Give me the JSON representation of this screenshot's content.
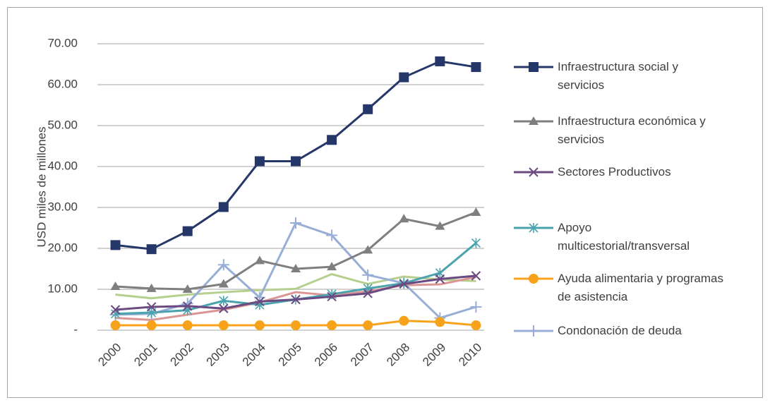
{
  "chart_data": {
    "type": "line",
    "y_label": "USD miles de millones",
    "categories": [
      "2000",
      "2001",
      "2002",
      "2003",
      "2004",
      "2005",
      "2006",
      "2007",
      "2008",
      "2009",
      "2010"
    ],
    "ylim": [
      0,
      70
    ],
    "yticks": [
      {
        "value": 0,
        "label": "-"
      },
      {
        "value": 10,
        "label": "10.00"
      },
      {
        "value": 20,
        "label": "20.00"
      },
      {
        "value": 30,
        "label": "30.00"
      },
      {
        "value": 40,
        "label": "40.00"
      },
      {
        "value": 50,
        "label": "50.00"
      },
      {
        "value": 60,
        "label": "60.00"
      },
      {
        "value": 70,
        "label": "70.00"
      }
    ],
    "grid": true,
    "legend": "right",
    "series": [
      {
        "name": "Infraestructura social y servicios",
        "color": "#253668",
        "marker": "square",
        "values": [
          20.8,
          19.8,
          24.2,
          30.1,
          41.3,
          41.3,
          46.5,
          54.0,
          61.8,
          65.7,
          64.3
        ]
      },
      {
        "name": "Infraestructura económica y servicios",
        "color": "#7f7f7f",
        "marker": "triangle",
        "values": [
          10.7,
          10.2,
          10.0,
          11.3,
          17.0,
          15.0,
          15.5,
          19.6,
          27.2,
          25.4,
          28.8
        ]
      },
      {
        "name": "Sectores Productivos",
        "color": "#6b4a82",
        "marker": "x",
        "values": [
          5.0,
          5.7,
          5.9,
          5.3,
          7.0,
          7.5,
          8.2,
          9.0,
          11.3,
          12.5,
          13.3
        ]
      },
      {
        "name": "Apoyo multicestorial/transversal",
        "color": "#4aa3ad",
        "marker": "asterisk",
        "values": [
          4.0,
          4.3,
          4.9,
          7.2,
          6.2,
          7.5,
          8.8,
          10.2,
          11.5,
          14.0,
          21.3
        ]
      },
      {
        "name": "Ayuda alimentaria y programas de asistencia",
        "color": "#f7a21b",
        "marker": "circle",
        "values": [
          1.2,
          1.2,
          1.2,
          1.2,
          1.2,
          1.2,
          1.2,
          1.2,
          2.3,
          2.0,
          1.2
        ]
      },
      {
        "name": "Condonación de deuda",
        "color": "#98aed6",
        "marker": "plus",
        "values": [
          3.8,
          4.0,
          6.5,
          16.0,
          8.0,
          26.2,
          23.2,
          13.5,
          11.5,
          3.0,
          5.7
        ]
      },
      {
        "color": "#b5cf8f",
        "values": [
          8.7,
          7.8,
          8.7,
          9.3,
          9.8,
          10.1,
          13.7,
          11.3,
          13.1,
          12.4,
          12.0
        ]
      },
      {
        "color": "#d99694",
        "values": [
          3.0,
          2.5,
          3.8,
          5.0,
          6.8,
          9.3,
          8.5,
          9.5,
          11.0,
          11.2,
          13.0
        ]
      }
    ]
  }
}
